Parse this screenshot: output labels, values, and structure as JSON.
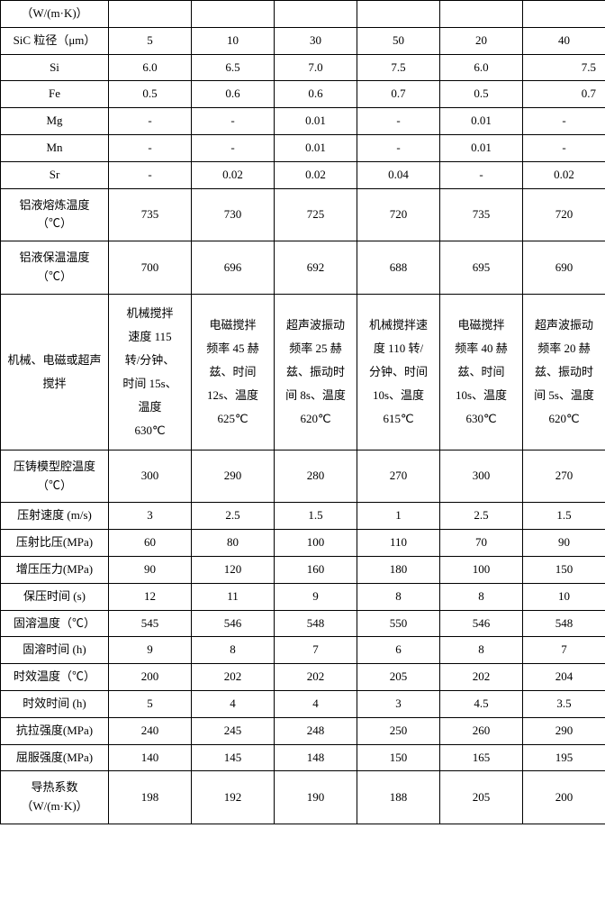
{
  "rows": [
    {
      "h": "（W/(m·K)）",
      "cells": [
        "",
        "",
        "",
        "",
        "",
        ""
      ]
    },
    {
      "h": "SiC 粒径（μm）",
      "cells": [
        "5",
        "10",
        "30",
        "50",
        "20",
        "40"
      ]
    },
    {
      "h": "Si",
      "cells": [
        "6.0",
        "6.5",
        "7.0",
        "7.5",
        "6.0",
        "7.5"
      ],
      "lastBottom": true
    },
    {
      "h": "Fe",
      "cells": [
        "0.5",
        "0.6",
        "0.6",
        "0.7",
        "0.5",
        "0.7"
      ],
      "lastBottom": true
    },
    {
      "h": "Mg",
      "cells": [
        "-",
        "-",
        "0.01",
        "-",
        "0.01",
        "-"
      ]
    },
    {
      "h": "Mn",
      "cells": [
        "-",
        "-",
        "0.01",
        "-",
        "0.01",
        "-"
      ]
    },
    {
      "h": "Sr",
      "cells": [
        "-",
        "0.02",
        "0.02",
        "0.04",
        "-",
        "0.02"
      ]
    },
    {
      "h": "铝液熔炼温度\n（℃）",
      "cells": [
        "735",
        "730",
        "725",
        "720",
        "735",
        "720"
      ],
      "tall": true
    },
    {
      "h": "铝液保温温度\n（℃）",
      "cells": [
        "700",
        "696",
        "692",
        "688",
        "695",
        "690"
      ],
      "tall": true
    },
    {
      "h": "机械、电磁或超声\n搅拌",
      "cells": [
        "机械搅拌\n速度 115\n转/分钟、\n时间 15s、\n温度\n630℃",
        "电磁搅拌\n频率 45 赫\n兹、时间\n12s、温度\n625℃",
        "超声波振动\n频率 25 赫\n兹、振动时\n间 8s、温度\n620℃",
        "机械搅拌速\n度 110 转/\n分钟、时间\n10s、温度\n615℃",
        "电磁搅拌\n频率 40 赫\n兹、时间\n10s、温度\n630℃",
        "超声波振动\n频率 20 赫\n兹、振动时\n间 5s、温度\n620℃"
      ],
      "multi": true
    },
    {
      "h": "压铸模型腔温度\n（℃）",
      "cells": [
        "300",
        "290",
        "280",
        "270",
        "300",
        "270"
      ],
      "tall": true
    },
    {
      "h": "压射速度 (m/s)",
      "cells": [
        "3",
        "2.5",
        "1.5",
        "1",
        "2.5",
        "1.5"
      ]
    },
    {
      "h": "压射比压(MPa)",
      "cells": [
        "60",
        "80",
        "100",
        "110",
        "70",
        "90"
      ]
    },
    {
      "h": "增压压力(MPa)",
      "cells": [
        "90",
        "120",
        "160",
        "180",
        "100",
        "150"
      ]
    },
    {
      "h": "保压时间 (s)",
      "cells": [
        "12",
        "11",
        "9",
        "8",
        "8",
        "10"
      ]
    },
    {
      "h": "固溶温度（℃）",
      "cells": [
        "545",
        "546",
        "548",
        "550",
        "546",
        "548"
      ]
    },
    {
      "h": "固溶时间 (h)",
      "cells": [
        "9",
        "8",
        "7",
        "6",
        "8",
        "7"
      ]
    },
    {
      "h": "时效温度（℃）",
      "cells": [
        "200",
        "202",
        "202",
        "205",
        "202",
        "204"
      ]
    },
    {
      "h": "时效时间 (h)",
      "cells": [
        "5",
        "4",
        "4",
        "3",
        "4.5",
        "3.5"
      ]
    },
    {
      "h": "抗拉强度(MPa)",
      "cells": [
        "240",
        "245",
        "248",
        "250",
        "260",
        "290"
      ]
    },
    {
      "h": "屈服强度(MPa)",
      "cells": [
        "140",
        "145",
        "148",
        "150",
        "165",
        "195"
      ]
    },
    {
      "h": "导热系数\n（W/(m·K)）",
      "cells": [
        "198",
        "192",
        "190",
        "188",
        "205",
        "200"
      ],
      "tall": true
    }
  ]
}
